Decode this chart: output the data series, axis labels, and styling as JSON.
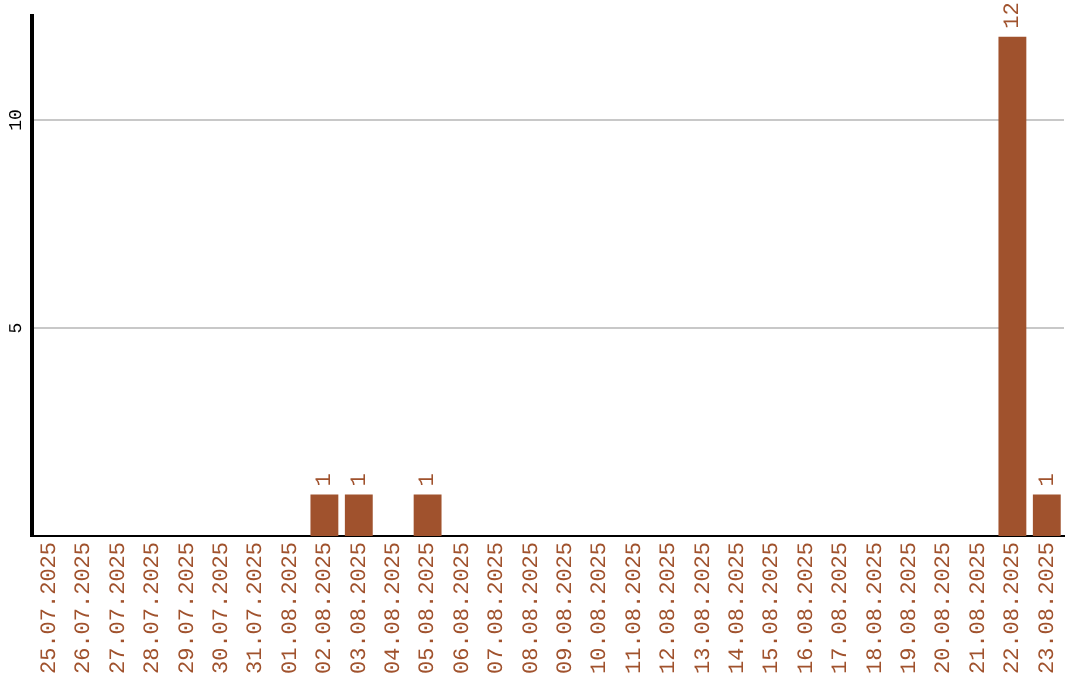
{
  "chart_data": {
    "type": "bar",
    "categories": [
      "25.07.2025",
      "26.07.2025",
      "27.07.2025",
      "28.07.2025",
      "29.07.2025",
      "30.07.2025",
      "31.07.2025",
      "01.08.2025",
      "02.08.2025",
      "03.08.2025",
      "04.08.2025",
      "05.08.2025",
      "06.08.2025",
      "07.08.2025",
      "08.08.2025",
      "09.08.2025",
      "10.08.2025",
      "11.08.2025",
      "12.08.2025",
      "13.08.2025",
      "14.08.2025",
      "15.08.2025",
      "16.08.2025",
      "17.08.2025",
      "18.08.2025",
      "19.08.2025",
      "20.08.2025",
      "21.08.2025",
      "22.08.2025",
      "23.08.2025"
    ],
    "values": [
      0,
      0,
      0,
      0,
      0,
      0,
      0,
      0,
      1,
      1,
      0,
      1,
      0,
      0,
      0,
      0,
      0,
      0,
      0,
      0,
      0,
      0,
      0,
      0,
      0,
      0,
      0,
      0,
      12,
      1
    ],
    "value_labels": [
      null,
      null,
      null,
      null,
      null,
      null,
      null,
      null,
      "1",
      "1",
      null,
      "1",
      null,
      null,
      null,
      null,
      null,
      null,
      null,
      null,
      null,
      null,
      null,
      null,
      null,
      null,
      null,
      null,
      "12",
      "1"
    ],
    "color": "#a0522d",
    "ylim": [
      0,
      12.5
    ],
    "yticks": [
      5,
      10
    ],
    "grid": "y"
  }
}
